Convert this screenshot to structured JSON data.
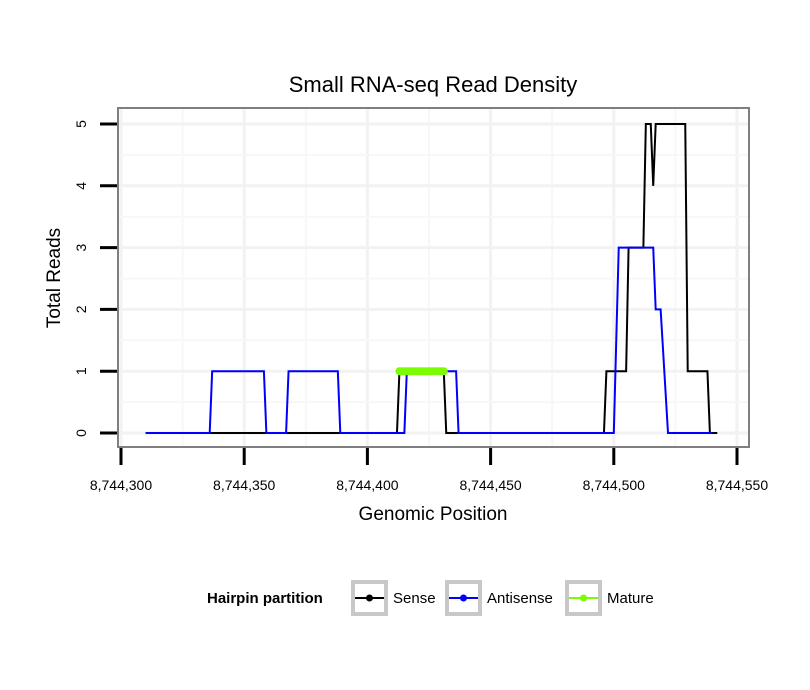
{
  "chart_data": {
    "type": "line",
    "title": "Small RNA-seq Read Density",
    "xlabel": "Genomic Position",
    "ylabel": "Total Reads",
    "xlim": [
      8744300,
      8744550
    ],
    "ylim": [
      -0.2,
      5.2
    ],
    "x_ticks": [
      8744300,
      8744350,
      8744400,
      8744450,
      8744500,
      8744550
    ],
    "x_tick_labels": [
      "8,744,300",
      "8,744,350",
      "8,744,400",
      "8,744,450",
      "8,744,500",
      "8,744,550"
    ],
    "y_ticks": [
      0,
      1,
      2,
      3,
      4,
      5
    ],
    "y_tick_labels": [
      "0",
      "1",
      "2",
      "3",
      "4",
      "5"
    ],
    "grid": true,
    "legend": {
      "title": "Hairpin partition",
      "placement": "bottom",
      "entries": [
        "Sense",
        "Antisense",
        "Mature"
      ]
    },
    "series": [
      {
        "name": "Sense",
        "color": "#000000",
        "x": [
          8744310,
          8744412,
          8744413,
          8744431,
          8744432,
          8744496,
          8744497,
          8744505,
          8744506,
          8744512,
          8744513,
          8744515,
          8744516,
          8744517,
          8744529,
          8744530,
          8744538,
          8744539,
          8744542
        ],
        "y": [
          0,
          0,
          1,
          1,
          0,
          0,
          1,
          1,
          3,
          3,
          5,
          5,
          4,
          5,
          5,
          1,
          1,
          0,
          0
        ]
      },
      {
        "name": "Antisense",
        "color": "#0000ff",
        "x": [
          8744310,
          8744336,
          8744337,
          8744358,
          8744359,
          8744367,
          8744368,
          8744388,
          8744389,
          8744415,
          8744416,
          8744436,
          8744437,
          8744500,
          8744502,
          8744516,
          8744517,
          8744519,
          8744522,
          8744540
        ],
        "y": [
          0,
          0,
          1,
          1,
          0,
          0,
          1,
          1,
          0,
          0,
          1,
          1,
          0,
          0,
          3,
          3,
          2,
          2,
          0,
          0
        ]
      },
      {
        "name": "Mature",
        "color": "#7cfc00",
        "x": [
          8744413,
          8744414,
          8744415,
          8744416,
          8744417,
          8744418,
          8744419,
          8744420,
          8744421,
          8744422,
          8744423,
          8744424,
          8744425,
          8744426,
          8744427,
          8744428,
          8744429,
          8744430,
          8744431
        ],
        "y": [
          1,
          1,
          1,
          1,
          1,
          1,
          1,
          1,
          1,
          1,
          1,
          1,
          1,
          1,
          1,
          1,
          1,
          1,
          1
        ]
      }
    ]
  }
}
